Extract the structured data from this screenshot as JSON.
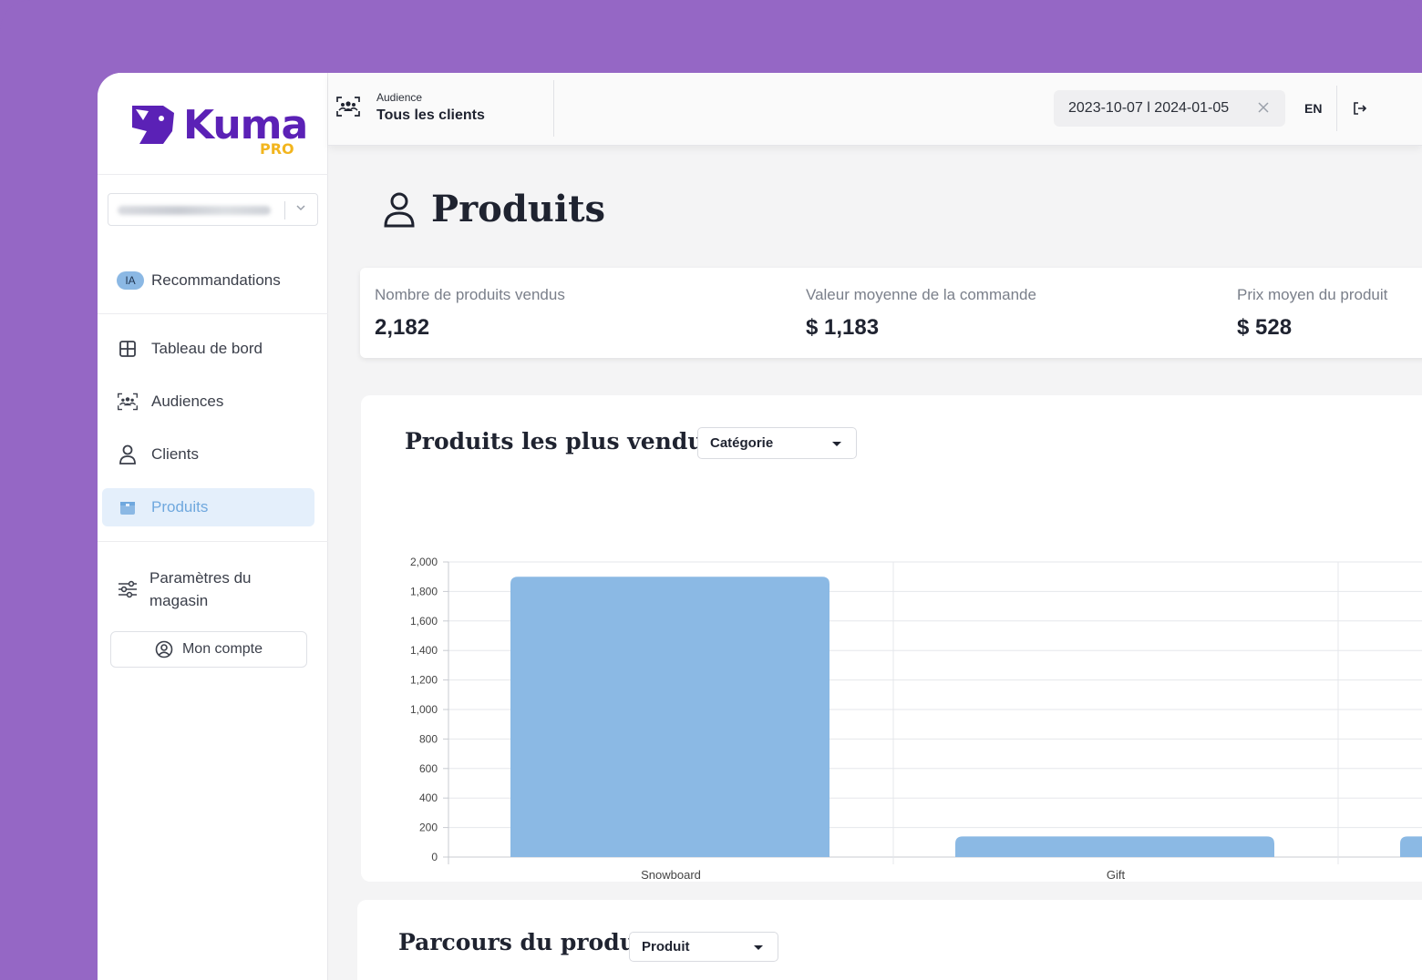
{
  "brand": {
    "name": "Kuma",
    "tier": "PRO",
    "primary": "#5b21b6",
    "accent": "#f2b51e"
  },
  "sidebar": {
    "ia_badge": "IA",
    "items": [
      {
        "label": "Recommandations",
        "icon": "ia-badge"
      },
      {
        "label": "Tableau de bord",
        "icon": "grid-icon"
      },
      {
        "label": "Audiences",
        "icon": "audience-icon"
      },
      {
        "label": "Clients",
        "icon": "user-icon"
      },
      {
        "label": "Produits",
        "icon": "box-icon",
        "active": true
      },
      {
        "label": "Paramètres du magasin",
        "icon": "sliders-icon"
      }
    ],
    "account_label": "Mon compte"
  },
  "header": {
    "audience_label": "Audience",
    "audience_value": "Tous les clients",
    "date_range": "2023-10-07 l 2024-01-05",
    "lang": "EN"
  },
  "page": {
    "title": "Produits"
  },
  "kpis": [
    {
      "label": "Nombre de produits vendus",
      "value": "2,182"
    },
    {
      "label": "Valeur moyenne de la commande",
      "value": "$ 1,183"
    },
    {
      "label": "Prix moyen du produit",
      "value": "$ 528"
    }
  ],
  "top_products": {
    "title": "Produits les plus vendus",
    "select_value": "Catégorie"
  },
  "journey": {
    "title": "Parcours du produit",
    "select_value": "Produit"
  },
  "chart_data": {
    "type": "bar",
    "categories": [
      "Snowboard",
      "Gift\nCard",
      ""
    ],
    "series": [
      {
        "name": "Produits les plus vendus",
        "values": [
          1900,
          140,
          140
        ],
        "color": "#8bb9e4"
      }
    ],
    "ylim": [
      0,
      2000
    ],
    "yticks": [
      "0",
      "200",
      "400",
      "600",
      "800",
      "1,000",
      "1,200",
      "1,400",
      "1,600",
      "1,800",
      "2,000"
    ],
    "grid": true,
    "legend": "bottom"
  }
}
